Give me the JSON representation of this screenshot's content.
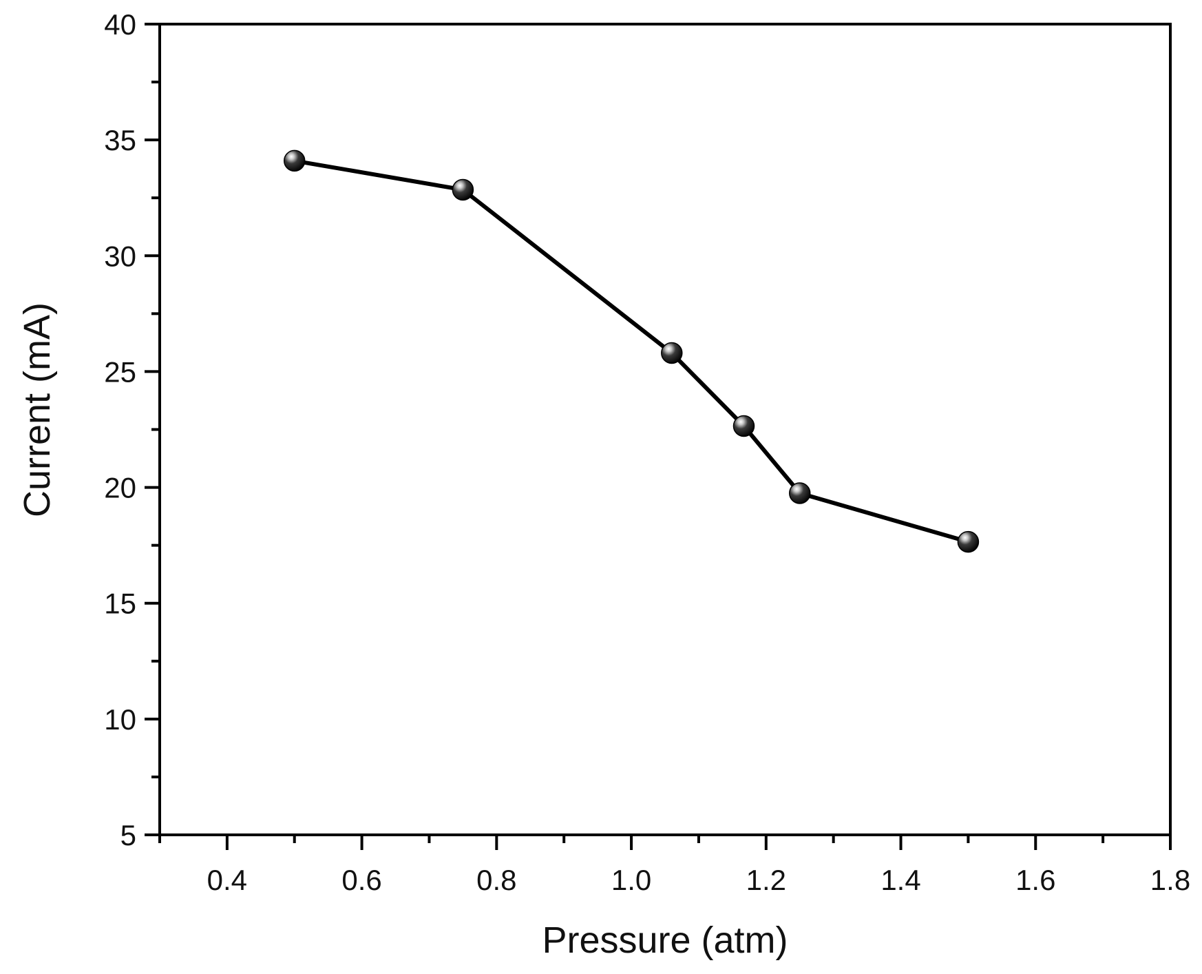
{
  "chart_data": {
    "type": "line",
    "title": "",
    "xlabel": "Pressure (atm)",
    "ylabel": "Current (mA)",
    "xlim": [
      0.3,
      1.8
    ],
    "ylim": [
      5,
      40
    ],
    "x_ticks": [
      0.4,
      0.6,
      0.8,
      1.0,
      1.2,
      1.4,
      1.6,
      1.8
    ],
    "x_tick_labels": [
      "0.4",
      "0.6",
      "0.8",
      "1.0",
      "1.2",
      "1.4",
      "1.6",
      "1.8"
    ],
    "y_ticks": [
      5,
      10,
      15,
      20,
      25,
      30,
      35,
      40
    ],
    "y_tick_labels": [
      "5",
      "10",
      "15",
      "20",
      "25",
      "30",
      "35",
      "40"
    ],
    "grid": false,
    "series": [
      {
        "x": [
          0.5,
          0.75,
          1.06,
          1.167,
          1.25,
          1.5
        ],
        "y": [
          34.1,
          32.85,
          25.8,
          22.65,
          19.75,
          17.65
        ],
        "color": "#000000",
        "marker": "sphere"
      }
    ]
  }
}
